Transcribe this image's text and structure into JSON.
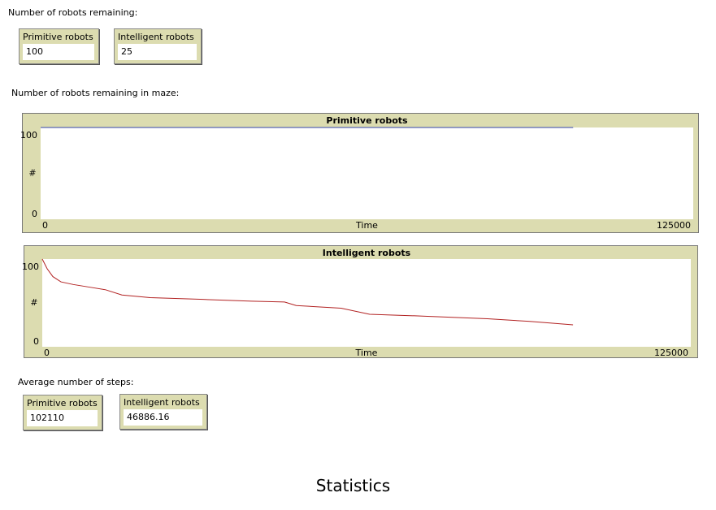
{
  "header": "Number of robots remaining:",
  "remaining": [
    {
      "label": "Primitive robots",
      "value": "100"
    },
    {
      "label": "Intelligent robots",
      "value": "25"
    }
  ],
  "plots_label": "Number of robots remaining in maze:",
  "chart_data": [
    {
      "type": "line",
      "title": "Primitive robots",
      "x_label": "Time",
      "y_label": "#",
      "xlim": [
        0,
        125000
      ],
      "ylim": [
        0,
        100
      ],
      "xticks": [
        0,
        125000
      ],
      "yticks": [
        0,
        100
      ],
      "series": [
        {
          "color": "#3344aa",
          "x": [
            0,
            102000
          ],
          "values": [
            100,
            100
          ]
        }
      ]
    },
    {
      "type": "line",
      "title": "Intelligent robots",
      "x_label": "Time",
      "y_label": "#",
      "xlim": [
        0,
        125000
      ],
      "ylim": [
        0,
        100
      ],
      "xticks": [
        0,
        125000
      ],
      "yticks": [
        0,
        100
      ],
      "series": [
        {
          "color": "#b22222",
          "x": [
            0,
            940,
            2040,
            3600,
            5950,
            9090,
            12200,
            15350,
            20800,
            31000,
            40400,
            46700,
            48950,
            57600,
            63100,
            73300,
            85800,
            93700,
            102300
          ],
          "values": [
            100,
            89,
            80,
            74,
            71,
            68,
            65,
            59,
            56,
            54,
            52,
            51,
            47,
            44,
            37,
            35,
            32,
            29,
            25
          ]
        }
      ]
    }
  ],
  "steps_label": "Average number of steps:",
  "steps": [
    {
      "label": "Primitive robots",
      "value": "102110"
    },
    {
      "label": "Intelligent robots",
      "value": "46886.16"
    }
  ],
  "footer": "Statistics"
}
